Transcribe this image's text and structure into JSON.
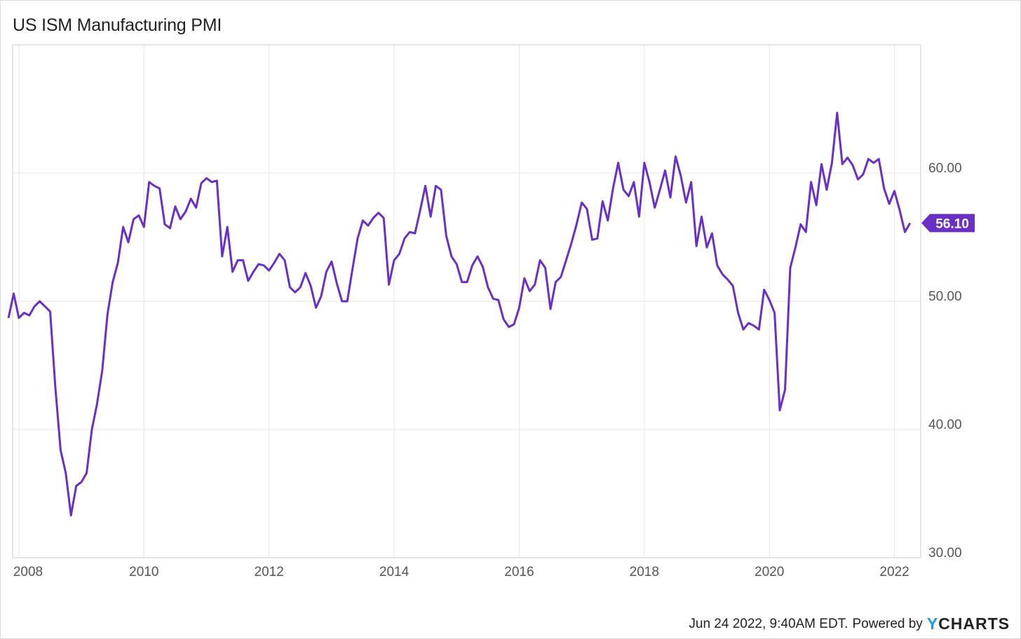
{
  "title": "US ISM Manufacturing PMI",
  "footer": {
    "timestamp": "Jun 24 2022, 9:40AM EDT.",
    "powered_by": "Powered by",
    "brand_y": "Y",
    "brand_rest": "CHARTS"
  },
  "colors": {
    "line": "#6a2fc5",
    "label_bg": "#6a2fc5",
    "grid": "#e6e6e6",
    "axis": "#cccccc"
  },
  "chart_data": {
    "type": "line",
    "title": "US ISM Manufacturing PMI",
    "xlabel": "",
    "ylabel": "",
    "xlim": [
      2007.9,
      2022.42
    ],
    "ylim": [
      30,
      70
    ],
    "grid": true,
    "x_ticks": [
      {
        "value": 2008,
        "label": "2008"
      },
      {
        "value": 2010,
        "label": "2010"
      },
      {
        "value": 2012,
        "label": "2012"
      },
      {
        "value": 2014,
        "label": "2014"
      },
      {
        "value": 2016,
        "label": "2016"
      },
      {
        "value": 2018,
        "label": "2018"
      },
      {
        "value": 2020,
        "label": "2020"
      },
      {
        "value": 2022,
        "label": "2022"
      }
    ],
    "y_ticks": [
      {
        "value": 30,
        "label": "30.00"
      },
      {
        "value": 40,
        "label": "40.00"
      },
      {
        "value": 50,
        "label": "50.00"
      },
      {
        "value": 60,
        "label": "60.00"
      }
    ],
    "last_value_label": "56.10",
    "series": [
      {
        "start": "2007-11",
        "frequency": "monthly",
        "values": [
          48.7,
          50.6,
          48.7,
          49.1,
          48.9,
          49.6,
          50.0,
          49.6,
          49.2,
          43.3,
          38.4,
          36.6,
          33.3,
          35.6,
          35.9,
          36.6,
          40.0,
          42.0,
          44.6,
          49.0,
          51.5,
          53.0,
          55.8,
          54.6,
          56.4,
          56.7,
          55.8,
          59.3,
          59.0,
          58.8,
          56.0,
          55.7,
          57.4,
          56.4,
          57.0,
          58.0,
          57.3,
          59.2,
          59.6,
          59.3,
          59.4,
          53.5,
          55.8,
          52.3,
          53.2,
          53.2,
          51.6,
          52.3,
          52.9,
          52.8,
          52.4,
          53.0,
          53.7,
          53.2,
          51.1,
          50.7,
          51.1,
          52.2,
          51.2,
          49.5,
          50.4,
          52.3,
          53.1,
          51.4,
          50.0,
          50.0,
          52.5,
          54.9,
          56.3,
          55.9,
          56.5,
          56.9,
          56.5,
          51.3,
          53.2,
          53.7,
          54.9,
          55.4,
          55.3,
          57.1,
          59.0,
          56.6,
          59.0,
          58.7,
          55.1,
          53.5,
          52.9,
          51.5,
          51.5,
          52.8,
          53.5,
          52.7,
          51.1,
          50.2,
          50.1,
          48.6,
          48.0,
          48.2,
          49.5,
          51.8,
          50.8,
          51.3,
          53.2,
          52.6,
          49.4,
          51.5,
          51.9,
          53.2,
          54.5,
          56.0,
          57.7,
          57.2,
          54.8,
          54.9,
          57.8,
          56.3,
          58.8,
          60.8,
          58.7,
          58.2,
          59.3,
          56.6,
          60.8,
          59.3,
          57.3,
          58.7,
          60.2,
          58.1,
          61.3,
          59.8,
          57.7,
          59.3,
          54.3,
          56.6,
          54.2,
          55.3,
          52.8,
          52.1,
          51.7,
          51.2,
          49.1,
          47.8,
          48.3,
          48.1,
          47.8,
          50.9,
          50.1,
          49.1,
          41.5,
          43.1,
          52.6,
          54.2,
          56.0,
          55.4,
          59.3,
          57.5,
          60.7,
          58.7,
          60.8,
          64.7,
          60.7,
          61.2,
          60.6,
          59.5,
          59.9,
          61.1,
          60.8,
          61.1,
          58.8,
          57.6,
          58.6,
          57.1,
          55.4,
          56.1
        ]
      }
    ]
  }
}
